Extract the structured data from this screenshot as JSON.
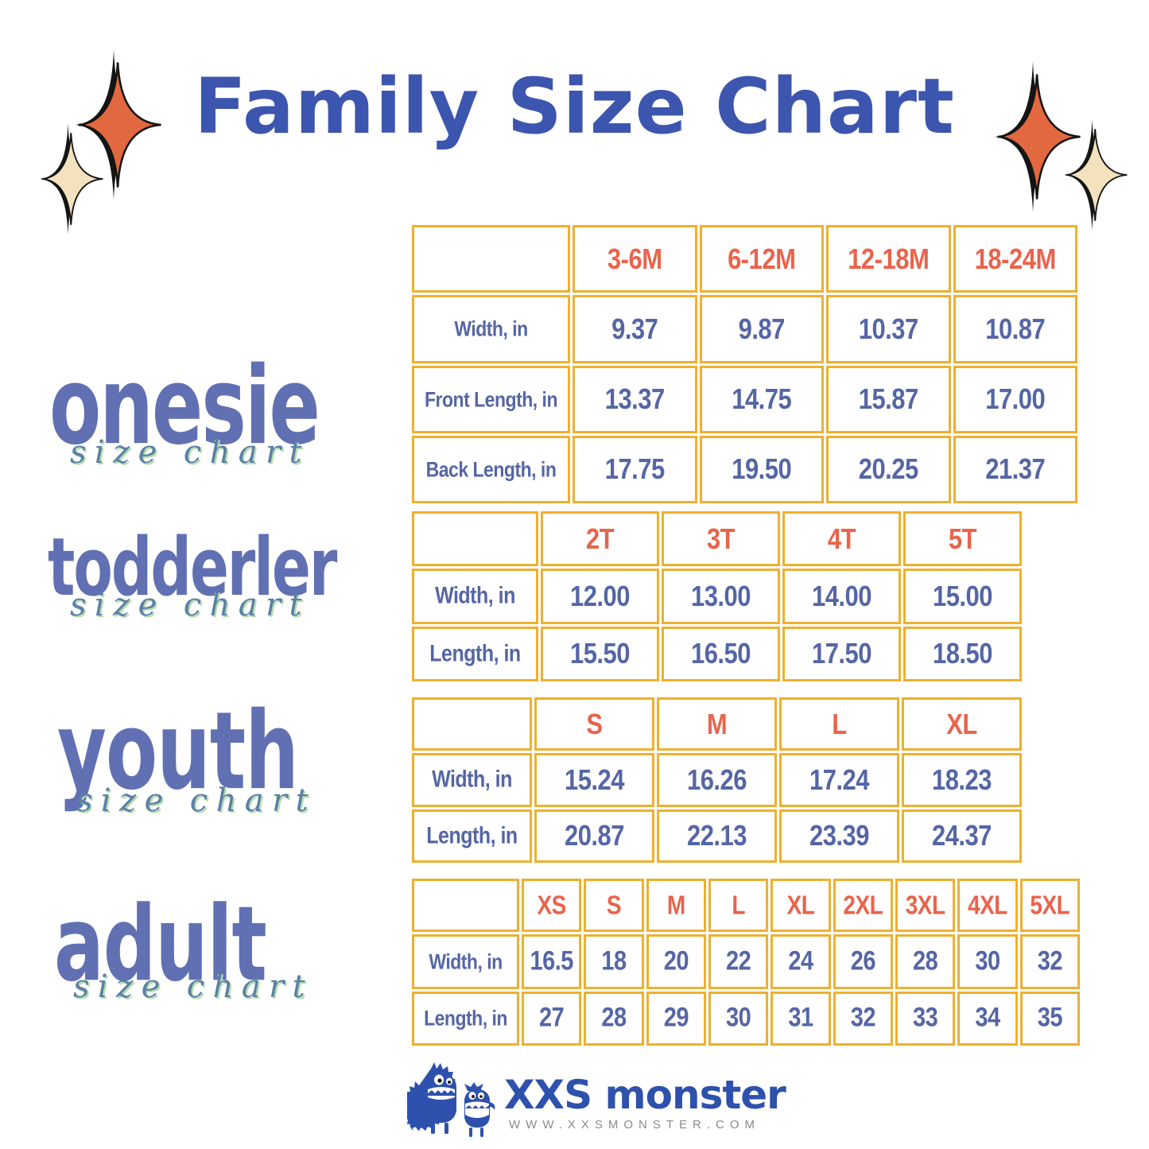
{
  "title": "Family Size Chart",
  "colors": {
    "title_blue": "#3c55ae",
    "header_coral": "#ea634b",
    "value_blue": "#5566a5",
    "table_border_gold": "#eeb02f",
    "label_purple": "#6170b2",
    "script_teal": "#5b80a6",
    "script_glow_green": "#b2dcab",
    "sparkle_orange": "#e2683f",
    "sparkle_cream": "#f3e2bd",
    "brand_blue": "#2d51ac",
    "website_gray": "#8a8a8a"
  },
  "sections": [
    {
      "id": "onesie",
      "label": "onesie",
      "sublabel": "size chart",
      "columns": [
        "3-6M",
        "6-12M",
        "12-18M",
        "18-24M"
      ],
      "rows": [
        {
          "label": "Width, in",
          "values": [
            "9.37",
            "9.87",
            "10.37",
            "10.87"
          ]
        },
        {
          "label": "Front Length, in",
          "values": [
            "13.37",
            "14.75",
            "15.87",
            "17.00"
          ]
        },
        {
          "label": "Back Length, in",
          "values": [
            "17.75",
            "19.50",
            "20.25",
            "21.37"
          ]
        }
      ]
    },
    {
      "id": "todderler",
      "label": "todderler",
      "sublabel": "size chart",
      "columns": [
        "2T",
        "3T",
        "4T",
        "5T"
      ],
      "rows": [
        {
          "label": "Width, in",
          "values": [
            "12.00",
            "13.00",
            "14.00",
            "15.00"
          ]
        },
        {
          "label": "Length, in",
          "values": [
            "15.50",
            "16.50",
            "17.50",
            "18.50"
          ]
        }
      ]
    },
    {
      "id": "youth",
      "label": "youth",
      "sublabel": "size chart",
      "columns": [
        "S",
        "M",
        "L",
        "XL"
      ],
      "rows": [
        {
          "label": "Width, in",
          "values": [
            "15.24",
            "16.26",
            "17.24",
            "18.23"
          ]
        },
        {
          "label": "Length, in",
          "values": [
            "20.87",
            "22.13",
            "23.39",
            "24.37"
          ]
        }
      ]
    },
    {
      "id": "adult",
      "label": "adult",
      "sublabel": "size chart",
      "columns": [
        "XS",
        "S",
        "M",
        "L",
        "XL",
        "2XL",
        "3XL",
        "4XL",
        "5XL"
      ],
      "rows": [
        {
          "label": "Width, in",
          "values": [
            "16.5",
            "18",
            "20",
            "22",
            "24",
            "26",
            "28",
            "30",
            "32"
          ]
        },
        {
          "label": "Length, in",
          "values": [
            "27",
            "28",
            "29",
            "30",
            "31",
            "32",
            "33",
            "34",
            "35"
          ]
        }
      ]
    }
  ],
  "footer": {
    "brand": "XXS monster",
    "website": "WWW.XXSMONSTER.COM"
  },
  "chart_data": [
    {
      "type": "table",
      "title": "onesie size chart",
      "columns": [
        "",
        "3-6M",
        "6-12M",
        "12-18M",
        "18-24M"
      ],
      "rows": [
        [
          "Width, in",
          9.37,
          9.87,
          10.37,
          10.87
        ],
        [
          "Front Length, in",
          13.37,
          14.75,
          15.87,
          17.0
        ],
        [
          "Back Length, in",
          17.75,
          19.5,
          20.25,
          21.37
        ]
      ]
    },
    {
      "type": "table",
      "title": "todderler size chart",
      "columns": [
        "",
        "2T",
        "3T",
        "4T",
        "5T"
      ],
      "rows": [
        [
          "Width, in",
          12.0,
          13.0,
          14.0,
          15.0
        ],
        [
          "Length, in",
          15.5,
          16.5,
          17.5,
          18.5
        ]
      ]
    },
    {
      "type": "table",
      "title": "youth size chart",
      "columns": [
        "",
        "S",
        "M",
        "L",
        "XL"
      ],
      "rows": [
        [
          "Width, in",
          15.24,
          16.26,
          17.24,
          18.23
        ],
        [
          "Length, in",
          20.87,
          22.13,
          23.39,
          24.37
        ]
      ]
    },
    {
      "type": "table",
      "title": "adult size chart",
      "columns": [
        "",
        "XS",
        "S",
        "M",
        "L",
        "XL",
        "2XL",
        "3XL",
        "4XL",
        "5XL"
      ],
      "rows": [
        [
          "Width, in",
          16.5,
          18,
          20,
          22,
          24,
          26,
          28,
          30,
          32
        ],
        [
          "Length, in",
          27,
          28,
          29,
          30,
          31,
          32,
          33,
          34,
          35
        ]
      ]
    }
  ]
}
